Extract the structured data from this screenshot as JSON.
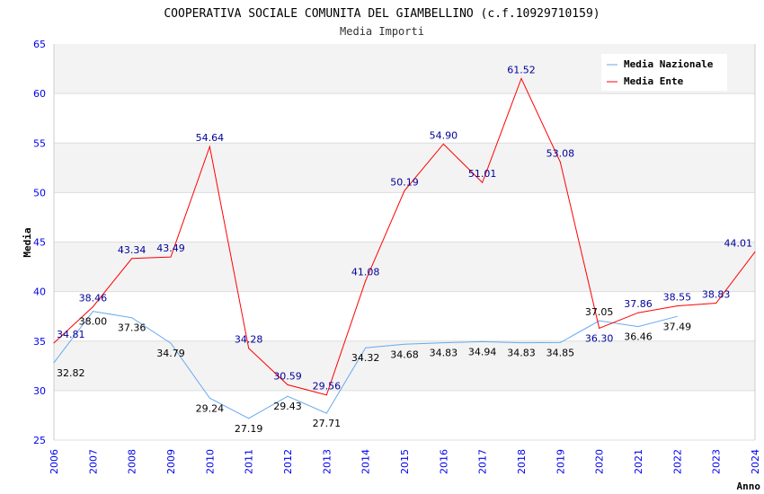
{
  "chart_data": {
    "type": "line",
    "title": "COOPERATIVA SOCIALE COMUNITA DEL GIAMBELLINO (c.f.10929710159)",
    "subtitle": "Media Importi",
    "xlabel": "Anno",
    "ylabel": "Media",
    "ylim": [
      25,
      65
    ],
    "yticks": [
      "25",
      "30",
      "35",
      "40",
      "45",
      "50",
      "55",
      "60",
      "65"
    ],
    "x": [
      "2006",
      "2007",
      "2008",
      "2009",
      "2010",
      "2011",
      "2012",
      "2013",
      "2014",
      "2015",
      "2016",
      "2017",
      "2018",
      "2019",
      "2020",
      "2021",
      "2022",
      "2023",
      "2024"
    ],
    "legend_position": "top-right",
    "grid": true,
    "series": [
      {
        "name": "Media Nazionale",
        "color": "#66aaee",
        "label_color": "#000000",
        "values": [
          32.82,
          38.0,
          37.36,
          34.79,
          29.24,
          27.19,
          29.43,
          27.71,
          34.32,
          34.68,
          34.83,
          34.94,
          34.83,
          34.85,
          37.05,
          36.46,
          37.49,
          null,
          null
        ],
        "labels": [
          "32.82",
          "38.00",
          "37.36",
          "34.79",
          "29.24",
          "27.19",
          "29.43",
          "27.71",
          "34.32",
          "34.68",
          "34.83",
          "34.94",
          "34.83",
          "34.85",
          "37.05",
          "36.46",
          "37.49",
          null,
          null
        ]
      },
      {
        "name": "Media Ente",
        "color": "#ff0000",
        "label_color": "#000099",
        "values": [
          34.81,
          38.46,
          43.34,
          43.49,
          54.64,
          34.28,
          30.59,
          29.56,
          41.08,
          50.19,
          54.9,
          51.01,
          61.52,
          53.08,
          36.3,
          37.86,
          38.55,
          38.83,
          44.01
        ],
        "labels": [
          "34.81",
          "38.46",
          "43.34",
          "43.49",
          "54.64",
          "34.28",
          "30.59",
          "29.56",
          "41.08",
          "50.19",
          "54.90",
          "51.01",
          "61.52",
          "53.08",
          "36.30",
          "37.86",
          "38.55",
          "38.83",
          "44.01"
        ]
      }
    ]
  }
}
